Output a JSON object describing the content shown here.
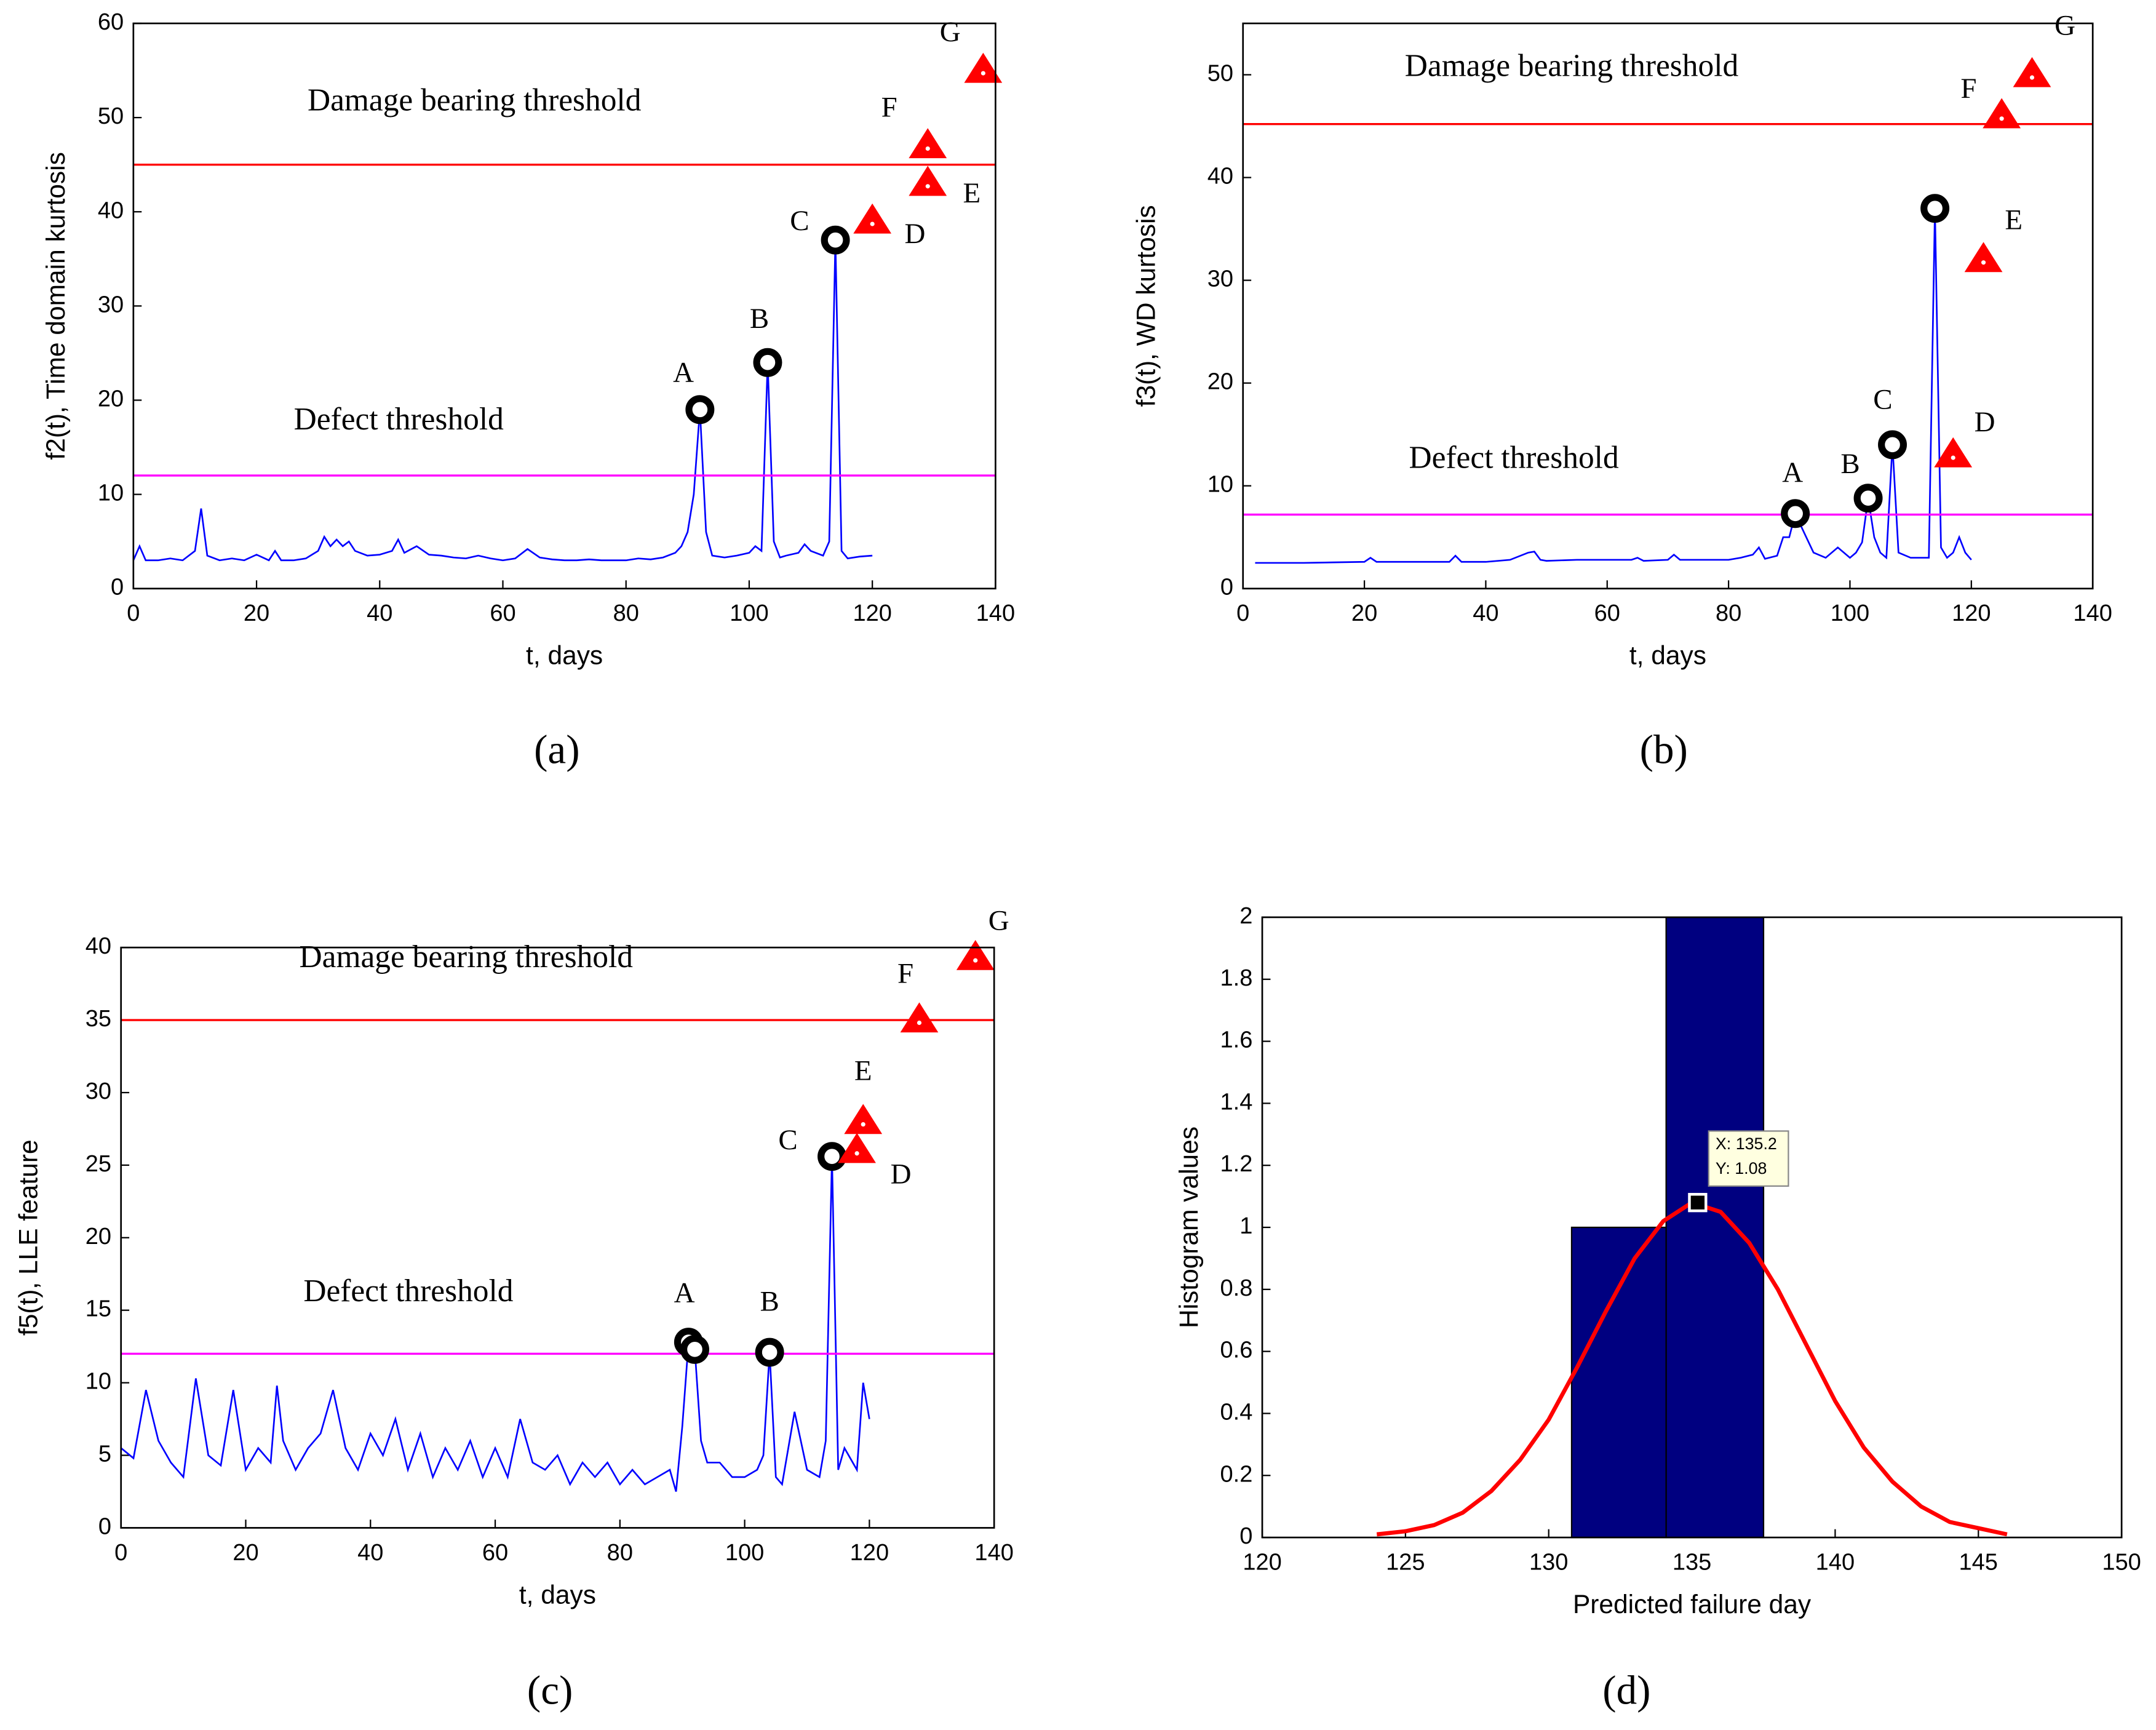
{
  "chart_data": [
    {
      "type": "line",
      "caption": "(a)",
      "xlabel": "t, days",
      "ylabel": "f2(t), Time domain kurtosis",
      "xlim": [
        0,
        140
      ],
      "xticks": [
        0,
        20,
        40,
        60,
        80,
        100,
        120,
        140
      ],
      "ylim": [
        0,
        60
      ],
      "yticks": [
        0,
        10,
        20,
        30,
        40,
        50,
        60
      ],
      "x": [
        0,
        1,
        2,
        4,
        6,
        8,
        10,
        11,
        12,
        14,
        16,
        18,
        20,
        22,
        23,
        24,
        26,
        28,
        30,
        31,
        32,
        33,
        34,
        35,
        36,
        38,
        40,
        42,
        43,
        44,
        46,
        48,
        50,
        52,
        54,
        56,
        58,
        60,
        62,
        64,
        66,
        68,
        70,
        72,
        74,
        76,
        78,
        80,
        82,
        84,
        86,
        88,
        89,
        90,
        91,
        92,
        93,
        94,
        96,
        98,
        100,
        101,
        102,
        103,
        104,
        105,
        106,
        108,
        109,
        110,
        112,
        113,
        114,
        115,
        116,
        118,
        120
      ],
      "series": [
        {
          "color": "#0000ff",
          "values": [
            3,
            4.5,
            3,
            3,
            3.2,
            3,
            4,
            8.5,
            3.5,
            3,
            3.2,
            3,
            3.6,
            3,
            4,
            3,
            3,
            3.2,
            4,
            5.5,
            4.5,
            5.2,
            4.5,
            5,
            4,
            3.5,
            3.6,
            4,
            5.2,
            3.8,
            4.5,
            3.6,
            3.5,
            3.3,
            3.2,
            3.5,
            3.2,
            3,
            3.2,
            4.2,
            3.3,
            3.1,
            3,
            3,
            3.1,
            3,
            3,
            3,
            3.2,
            3.1,
            3.3,
            3.8,
            4.5,
            6,
            10,
            19,
            6,
            3.5,
            3.3,
            3.5,
            3.8,
            4.5,
            4,
            24,
            5,
            3.3,
            3.5,
            3.8,
            4.7,
            4,
            3.5,
            5,
            37,
            4,
            3.2,
            3.4,
            3.5
          ]
        }
      ],
      "thresholds": [
        {
          "label": "Defect threshold",
          "value": 12,
          "color": "#ff00ff"
        },
        {
          "label": "Damage bearing threshold",
          "value": 45,
          "color": "#ff0000"
        }
      ],
      "events": [
        {
          "label": "A",
          "x": 92,
          "y": 19,
          "marker": "circle",
          "color": "#000000"
        },
        {
          "label": "B",
          "x": 103,
          "y": 24,
          "marker": "circle",
          "color": "#000000"
        },
        {
          "label": "C",
          "x": 114,
          "y": 37,
          "marker": "circle",
          "color": "#000000"
        },
        {
          "label": "D",
          "x": 120,
          "y": 39,
          "marker": "triangle",
          "color": "#ff0000"
        },
        {
          "label": "E",
          "x": 129,
          "y": 43,
          "marker": "triangle",
          "color": "#ff0000"
        },
        {
          "label": "F",
          "x": 129,
          "y": 47,
          "marker": "triangle",
          "color": "#ff0000"
        },
        {
          "label": "G",
          "x": 138,
          "y": 55,
          "marker": "triangle",
          "color": "#ff0000"
        }
      ]
    },
    {
      "type": "line",
      "caption": "(b)",
      "xlabel": "t, days",
      "ylabel": "f3(t), WD kurtosis",
      "xlim": [
        0,
        140
      ],
      "xticks": [
        0,
        20,
        40,
        60,
        80,
        100,
        120,
        140
      ],
      "ylim": [
        0,
        55
      ],
      "yticks": [
        0,
        10,
        20,
        30,
        40,
        50
      ],
      "x": [
        2,
        10,
        20,
        21,
        22,
        30,
        34,
        35,
        36,
        40,
        44,
        47,
        48,
        49,
        50,
        55,
        60,
        64,
        65,
        66,
        70,
        71,
        72,
        76,
        80,
        82,
        84,
        85,
        86,
        88,
        89,
        90,
        91,
        92,
        94,
        96,
        98,
        100,
        101,
        102,
        103,
        104,
        105,
        106,
        107,
        108,
        110,
        112,
        113,
        114,
        115,
        116,
        117,
        118,
        119,
        120
      ],
      "series": [
        {
          "color": "#0000ff",
          "values": [
            2.5,
            2.5,
            2.6,
            3,
            2.6,
            2.6,
            2.6,
            3.2,
            2.6,
            2.6,
            2.8,
            3.5,
            3.6,
            2.8,
            2.7,
            2.8,
            2.8,
            2.8,
            3,
            2.7,
            2.8,
            3.3,
            2.8,
            2.8,
            2.8,
            3,
            3.3,
            4,
            2.9,
            3.2,
            5,
            5,
            7.3,
            6,
            3.5,
            3,
            4,
            3,
            3.5,
            4.5,
            8.8,
            5,
            3.5,
            3,
            14,
            3.5,
            3,
            3,
            3,
            37,
            4,
            3,
            3.5,
            5,
            3.5,
            2.8
          ]
        }
      ],
      "thresholds": [
        {
          "label": "Defect threshold",
          "value": 7.2,
          "color": "#ff00ff"
        },
        {
          "label": "Damage bearing threshold",
          "value": 45.2,
          "color": "#ff0000"
        }
      ],
      "events": [
        {
          "label": "A",
          "x": 91,
          "y": 7.3,
          "marker": "circle",
          "color": "#000000"
        },
        {
          "label": "B",
          "x": 103,
          "y": 8.8,
          "marker": "circle",
          "color": "#000000"
        },
        {
          "label": "C",
          "x": 107,
          "y": 14,
          "marker": "circle",
          "color": "#000000"
        },
        {
          "label": null,
          "x": 114,
          "y": 37,
          "marker": "circle",
          "color": "#000000"
        },
        {
          "label": "D",
          "x": 117,
          "y": 13,
          "marker": "triangle",
          "color": "#ff0000"
        },
        {
          "label": "E",
          "x": 122,
          "y": 32,
          "marker": "triangle",
          "color": "#ff0000"
        },
        {
          "label": "F",
          "x": 125,
          "y": 46,
          "marker": "triangle",
          "color": "#ff0000"
        },
        {
          "label": "G",
          "x": 130,
          "y": 50,
          "marker": "triangle",
          "color": "#ff0000"
        }
      ]
    },
    {
      "type": "line",
      "caption": "(c)",
      "xlabel": "t, days",
      "ylabel": "f5(t), LLE feature",
      "xlim": [
        0,
        140
      ],
      "xticks": [
        0,
        20,
        40,
        60,
        80,
        100,
        120,
        140
      ],
      "ylim": [
        0,
        40
      ],
      "yticks": [
        0,
        5,
        10,
        15,
        20,
        25,
        30,
        35,
        40
      ],
      "x": [
        0,
        2,
        4,
        6,
        8,
        10,
        12,
        14,
        16,
        18,
        20,
        22,
        24,
        25,
        26,
        28,
        30,
        32,
        34,
        36,
        38,
        40,
        42,
        44,
        46,
        48,
        50,
        52,
        54,
        56,
        58,
        60,
        62,
        64,
        66,
        68,
        70,
        72,
        74,
        76,
        78,
        80,
        82,
        84,
        86,
        88,
        89,
        90,
        91,
        92,
        93,
        94,
        96,
        98,
        100,
        102,
        103,
        104,
        105,
        106,
        108,
        110,
        112,
        113,
        114,
        115,
        116,
        118,
        119,
        120
      ],
      "series": [
        {
          "color": "#0000ff",
          "values": [
            5.5,
            4.8,
            9.5,
            6,
            4.5,
            3.5,
            10.3,
            5,
            4.3,
            9.5,
            4,
            5.5,
            4.5,
            9.8,
            6,
            4,
            5.5,
            6.5,
            9.5,
            5.5,
            4,
            6.5,
            5,
            7.5,
            4,
            6.5,
            3.5,
            5.5,
            4,
            6,
            3.5,
            5.5,
            3.5,
            7.5,
            4.5,
            4,
            5,
            3,
            4.5,
            3.5,
            4.5,
            3,
            4,
            3,
            3.5,
            4,
            2.5,
            7,
            12.8,
            12.3,
            6,
            4.5,
            4.5,
            3.5,
            3.5,
            4,
            5,
            12.1,
            3.5,
            3,
            8,
            4,
            3.5,
            6,
            25.6,
            4,
            5.5,
            4,
            10,
            7.5
          ]
        }
      ],
      "thresholds": [
        {
          "label": "Defect threshold",
          "value": 12,
          "color": "#ff00ff"
        },
        {
          "label": "Damage bearing threshold",
          "value": 35,
          "color": "#ff0000"
        }
      ],
      "events": [
        {
          "label": "A",
          "x": 91,
          "y": 12.8,
          "marker": "circle",
          "color": "#000000"
        },
        {
          "label": null,
          "x": 92,
          "y": 12.3,
          "marker": "circle",
          "color": "#000000"
        },
        {
          "label": "B",
          "x": 104,
          "y": 12.1,
          "marker": "circle",
          "color": "#000000"
        },
        {
          "label": "C",
          "x": 114,
          "y": 25.6,
          "marker": "circle",
          "color": "#000000"
        },
        {
          "label": "D",
          "x": 118,
          "y": 26,
          "marker": "triangle",
          "color": "#ff0000"
        },
        {
          "label": "E",
          "x": 119,
          "y": 28,
          "marker": "triangle",
          "color": "#ff0000"
        },
        {
          "label": "F",
          "x": 128,
          "y": 35,
          "marker": "triangle",
          "color": "#ff0000"
        },
        {
          "label": "G",
          "x": 137,
          "y": 39.3,
          "marker": "triangle",
          "color": "#ff0000"
        }
      ]
    },
    {
      "type": "histogram",
      "caption": "(d)",
      "xlabel": "Predicted failure day",
      "ylabel": "Histogram values",
      "xlim": [
        120,
        150
      ],
      "xticks": [
        120,
        125,
        130,
        135,
        140,
        145,
        150
      ],
      "ylim": [
        0,
        2
      ],
      "yticks": [
        0,
        0.2,
        0.4,
        0.6,
        0.8,
        1,
        1.2,
        1.4,
        1.6,
        1.8,
        2
      ],
      "bins": [
        130.8,
        134.1,
        137.5
      ],
      "values": [
        1,
        2
      ],
      "color": "#000080",
      "curve": {
        "color": "#ff0000",
        "x": [
          124,
          125,
          126,
          127,
          128,
          129,
          130,
          131,
          132,
          133,
          134,
          135,
          136,
          137,
          138,
          139,
          140,
          141,
          142,
          143,
          144,
          145,
          146
        ],
        "values": [
          0.01,
          0.02,
          0.04,
          0.08,
          0.15,
          0.25,
          0.38,
          0.55,
          0.73,
          0.9,
          1.02,
          1.08,
          1.05,
          0.95,
          0.8,
          0.62,
          0.44,
          0.29,
          0.18,
          0.1,
          0.05,
          0.03,
          0.01
        ]
      },
      "datatip": {
        "x": 135.2,
        "y": 1.08,
        "labels": [
          "X: 135.2",
          "Y: 1.08"
        ]
      }
    }
  ]
}
